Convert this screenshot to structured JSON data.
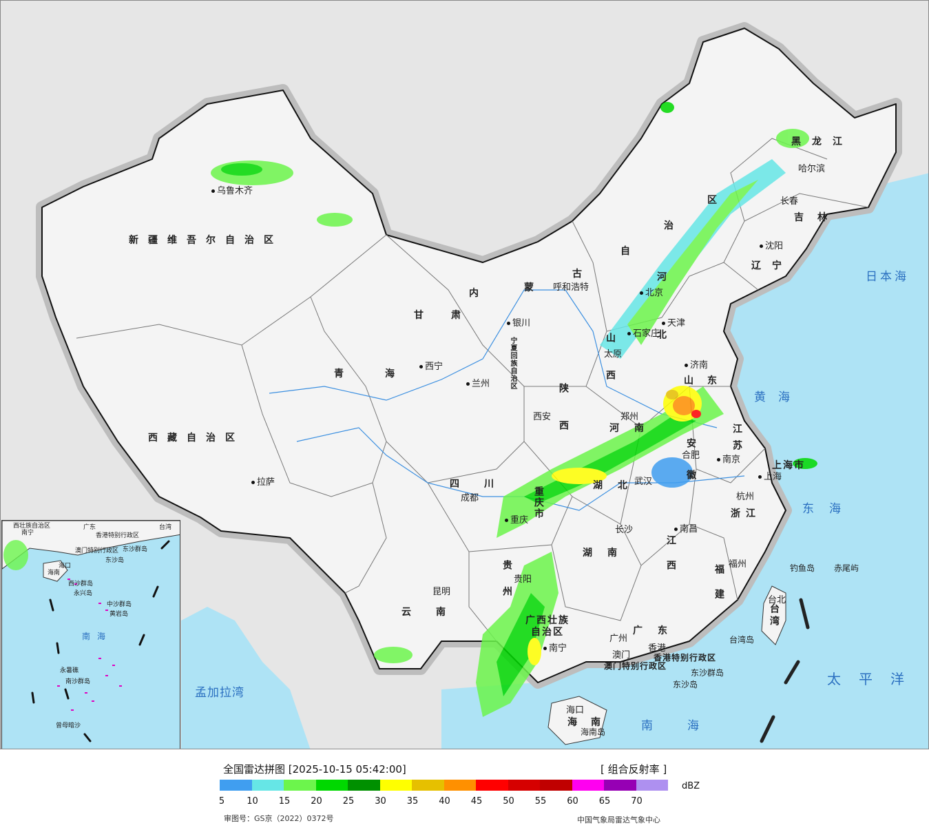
{
  "cities": [
    {
      "name": "乌鲁木齐",
      "key": "urumqi"
    },
    {
      "name": "拉萨",
      "key": "lhasa"
    },
    {
      "name": "西宁",
      "key": "xining"
    },
    {
      "name": "兰州",
      "key": "lanzhou"
    },
    {
      "name": "银川",
      "key": "yinchuan"
    },
    {
      "name": "呼和浩特",
      "key": "hohhot"
    },
    {
      "name": "北京",
      "key": "beijing"
    },
    {
      "name": "天津",
      "key": "tianjin"
    },
    {
      "name": "石家庄",
      "key": "shijiazhuang"
    },
    {
      "name": "太原",
      "key": "taiyuan"
    },
    {
      "name": "济南",
      "key": "jinan"
    },
    {
      "name": "郑州",
      "key": "zhengzhou"
    },
    {
      "name": "西安",
      "key": "xian"
    },
    {
      "name": "成都",
      "key": "chengdu"
    },
    {
      "name": "重庆",
      "key": "chongqing"
    },
    {
      "name": "武汉",
      "key": "wuhan"
    },
    {
      "name": "合肥",
      "key": "hefei"
    },
    {
      "name": "南京",
      "key": "nanjing"
    },
    {
      "name": "上海",
      "key": "shanghai"
    },
    {
      "name": "杭州",
      "key": "hangzhou"
    },
    {
      "name": "南昌",
      "key": "nanchang"
    },
    {
      "name": "长沙",
      "key": "changsha"
    },
    {
      "name": "贵阳",
      "key": "guiyang"
    },
    {
      "name": "昆明",
      "key": "kunming"
    },
    {
      "name": "南宁",
      "key": "nanning"
    },
    {
      "name": "广州",
      "key": "guangzhou"
    },
    {
      "name": "香港",
      "key": "hongkong"
    },
    {
      "name": "澳门",
      "key": "macau"
    },
    {
      "name": "福州",
      "key": "fuzhou"
    },
    {
      "name": "台北",
      "key": "taipei"
    },
    {
      "name": "海口",
      "key": "haikou"
    },
    {
      "name": "沈阳",
      "key": "shenyang"
    },
    {
      "name": "长春",
      "key": "changchun"
    },
    {
      "name": "哈尔滨",
      "key": "harbin"
    }
  ],
  "provinces": {
    "xinjiang": "新疆维吾尔自治区",
    "xizang": "西藏自治区",
    "qinghai": "青海",
    "gansu": "甘肃",
    "neimenggu_1": "内",
    "neimenggu_2": "蒙",
    "neimenggu_3": "古",
    "neimenggu_4": "自",
    "neimenggu_5": "治",
    "neimenggu_6": "区",
    "ningxia": "宁夏回族自治区",
    "shaanxi": "陕西",
    "shanxi": "山西",
    "hebei": "河北",
    "shandong": "山东",
    "henan": "河南",
    "sichuan": "四川",
    "chongqing_city": "重庆市",
    "hubei": "湖北",
    "hunan": "湖南",
    "anhui": "安徽",
    "jiangsu": "江苏",
    "shanghai_city": "上海市",
    "zhejiang": "浙江",
    "jiangxi": "江西",
    "fujian": "福建",
    "guizhou": "贵州",
    "yunnan": "云南",
    "guangxi_1": "广西壮族",
    "guangxi_2": "自治区",
    "guangdong": "广东",
    "hainan": "海南",
    "taiwan": "台湾",
    "heilongjiang": "黑龙江",
    "jilin": "吉林",
    "liaoning": "辽宁",
    "hk_sar": "香港特别行政区",
    "macau_sar": "澳门特别行政区"
  },
  "seas": {
    "japan_sea": "日本海",
    "yellow_sea": "黄海",
    "east_sea": "东海",
    "pacific": "太平洋",
    "south_sea": "南海",
    "bengal": "孟加拉湾"
  },
  "islands": {
    "diaoyu": "钓鱼岛",
    "chiwei": "赤尾屿",
    "taiwan_isl": "台湾岛",
    "dongsha_islands": "东沙群岛",
    "dongsha_isl": "东沙岛",
    "hainan_isl": "海南岛"
  },
  "inset": {
    "guangxi": "西壮族自治区",
    "nanning": "南宁",
    "guangdong": "广东",
    "hk": "香港特别行政区",
    "macau": "澳门特别行政区",
    "taiwan": "台湾",
    "dongsha": "东沙群岛",
    "dongsha_isl": "东沙岛",
    "haikou": "海口",
    "hainan": "海南",
    "xisha": "西沙群岛",
    "yongxing": "永兴岛",
    "zhongsha": "中沙群岛",
    "huangyan": "黄岩岛",
    "nansha": "南沙群岛",
    "yongshu": "永暑礁",
    "zengmu": "曾母暗沙",
    "south_sea": "南海"
  },
  "legend": {
    "title": "全国雷达拼图 [2025-10-15 05:42:00]",
    "product": "[ 组合反射率 ]",
    "unit": "dBZ",
    "ticks": [
      "5",
      "10",
      "15",
      "20",
      "25",
      "30",
      "35",
      "40",
      "45",
      "50",
      "55",
      "60",
      "65",
      "70"
    ],
    "colors": [
      "#409ef0",
      "#66e6e6",
      "#6cf54c",
      "#00d800",
      "#009000",
      "#ffff00",
      "#e6c000",
      "#ff9000",
      "#ff0000",
      "#d60000",
      "#c00000",
      "#ff00f0",
      "#9600b4",
      "#ae90f0"
    ],
    "review_no": "审图号：GS京（2022）0372号",
    "source": "中国气象局雷达气象中心"
  }
}
